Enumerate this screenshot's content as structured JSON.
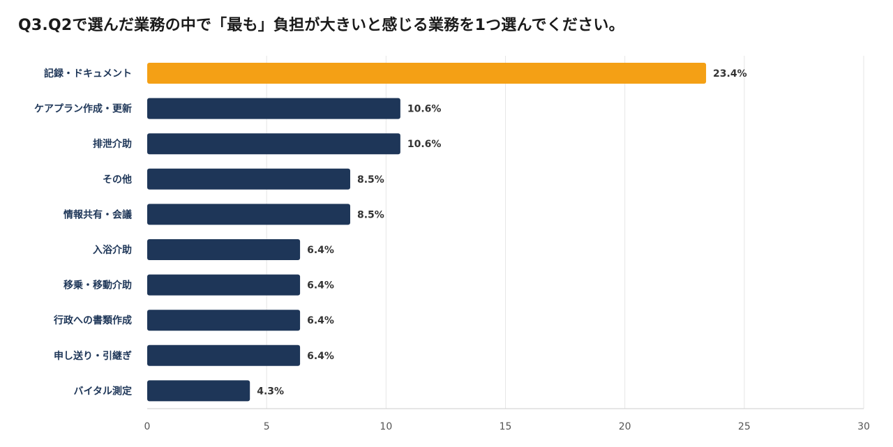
{
  "chart_data": {
    "type": "bar",
    "orientation": "horizontal",
    "title": "Q3.Q2で選んだ業務の中で「最も」負担が大きいと感じる業務を1つ選んでください。",
    "categories": [
      "記録・ドキュメント",
      "ケアプラン作成・更新",
      "排泄介助",
      "その他",
      "情報共有・会議",
      "入浴介助",
      "移乗・移動介助",
      "行政への書類作成",
      "申し送り・引継ぎ",
      "バイタル測定"
    ],
    "values": [
      23.4,
      10.6,
      10.6,
      8.5,
      8.5,
      6.4,
      6.4,
      6.4,
      6.4,
      4.3
    ],
    "value_labels": [
      "23.4%",
      "10.6%",
      "10.6%",
      "8.5%",
      "8.5%",
      "6.4%",
      "6.4%",
      "6.4%",
      "6.4%",
      "4.3%"
    ],
    "highlight_index": 0,
    "xlim": [
      0,
      30
    ],
    "xticks": [
      0,
      5,
      10,
      15,
      20,
      25,
      30
    ],
    "xtick_labels": [
      "0",
      "5",
      "10",
      "15",
      "20",
      "25",
      "30"
    ],
    "grid": true,
    "colors": {
      "highlight": "#f4a015",
      "bar": "#1e3658",
      "grid": "#e6e6e6"
    }
  }
}
